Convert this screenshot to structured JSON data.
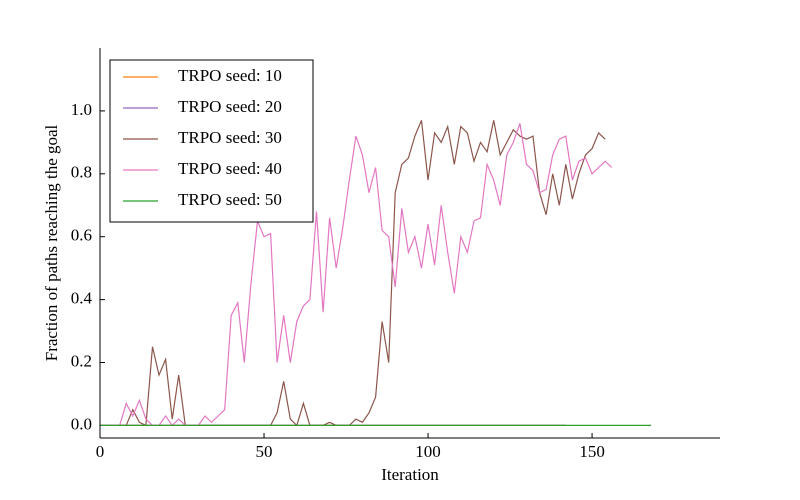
{
  "chart_data": {
    "type": "line",
    "x_label": "Iteration",
    "y_label": "Fraction of paths reaching the goal",
    "x": [
      0,
      2,
      4,
      6,
      8,
      10,
      12,
      14,
      16,
      18,
      20,
      22,
      24,
      26,
      28,
      30,
      32,
      34,
      36,
      38,
      40,
      42,
      44,
      46,
      48,
      50,
      52,
      54,
      56,
      58,
      60,
      62,
      64,
      66,
      68,
      70,
      72,
      74,
      76,
      78,
      80,
      82,
      84,
      86,
      88,
      90,
      92,
      94,
      96,
      98,
      100,
      102,
      104,
      106,
      108,
      110,
      112,
      114,
      116,
      118,
      120,
      122,
      124,
      126,
      128,
      130,
      132,
      134,
      136,
      138,
      140,
      142,
      144,
      146,
      148,
      150,
      152,
      154,
      156,
      158,
      160,
      162,
      164,
      166,
      168
    ],
    "series": [
      {
        "name": "TRPO seed: 10",
        "color": "#ff7f0e",
        "values": [
          0,
          0,
          0,
          0,
          0,
          0,
          0,
          0,
          0,
          0,
          0,
          0,
          0,
          0,
          0,
          0,
          0,
          0,
          0,
          0,
          0,
          0,
          0,
          0,
          0,
          0,
          0,
          0,
          0,
          0,
          0,
          0,
          0,
          0,
          0,
          0,
          0,
          0,
          0,
          0,
          0,
          0,
          0,
          0,
          0,
          0,
          0,
          0,
          0,
          0,
          0,
          0,
          0,
          0,
          0,
          0,
          0,
          0,
          0,
          0,
          0,
          0,
          0,
          0,
          0,
          0,
          0,
          0,
          0,
          0,
          0,
          0,
          null,
          null,
          null,
          null,
          null,
          null,
          null,
          null,
          null,
          null,
          null,
          null,
          null
        ]
      },
      {
        "name": "TRPO seed: 20",
        "color": "#9467bd",
        "values": [
          0,
          0,
          0,
          0,
          0,
          0,
          0,
          0,
          0,
          0,
          0,
          0,
          0,
          0,
          0,
          0,
          0,
          0,
          0,
          0,
          0,
          0,
          0,
          0,
          0,
          0,
          0,
          0,
          0,
          0,
          0,
          0,
          0,
          0,
          0,
          0,
          0,
          0,
          0,
          0,
          0,
          0,
          0,
          0,
          0,
          0,
          0,
          0,
          0,
          0,
          0,
          0,
          0,
          0,
          0,
          0,
          0,
          0,
          0,
          0,
          0,
          0,
          0,
          0,
          0,
          0,
          0,
          0,
          0,
          0,
          0,
          0,
          null,
          null,
          null,
          null,
          null,
          null,
          null,
          null,
          null,
          null,
          null,
          null,
          null
        ]
      },
      {
        "name": "TRPO seed: 30",
        "color": "#8c564b",
        "values": [
          0,
          0,
          0,
          0,
          0,
          0.05,
          0.01,
          0,
          0.25,
          0.16,
          0.21,
          0.02,
          0.16,
          0,
          0,
          0,
          0,
          0,
          0,
          0,
          0,
          0,
          0,
          0,
          0,
          0,
          0,
          0.04,
          0.14,
          0.02,
          0,
          0.07,
          0,
          0,
          0,
          0.01,
          0,
          0,
          0,
          0.02,
          0.01,
          0.04,
          0.09,
          0.33,
          0.2,
          0.74,
          0.83,
          0.85,
          0.92,
          0.97,
          0.78,
          0.93,
          0.9,
          0.95,
          0.83,
          0.95,
          0.93,
          0.84,
          0.9,
          0.87,
          0.97,
          0.86,
          0.9,
          0.94,
          0.92,
          0.91,
          0.92,
          0.74,
          0.67,
          0.8,
          0.7,
          0.83,
          0.72,
          0.8,
          0.86,
          0.88,
          0.93,
          0.91,
          null,
          null,
          null,
          null,
          null,
          null,
          null
        ]
      },
      {
        "name": "TRPO seed: 40",
        "color": "#e377c2",
        "values": [
          0,
          0,
          0,
          0,
          0.07,
          0.03,
          0.08,
          0.02,
          0,
          0,
          0.03,
          0,
          0.02,
          0,
          0,
          0,
          0.03,
          0.01,
          0.03,
          0.05,
          0.35,
          0.39,
          0.2,
          0.45,
          0.65,
          0.6,
          0.61,
          0.2,
          0.35,
          0.2,
          0.33,
          0.38,
          0.4,
          0.68,
          0.36,
          0.66,
          0.5,
          0.63,
          0.78,
          0.92,
          0.86,
          0.74,
          0.82,
          0.62,
          0.6,
          0.44,
          0.69,
          0.55,
          0.6,
          0.5,
          0.64,
          0.51,
          0.7,
          0.55,
          0.42,
          0.6,
          0.55,
          0.65,
          0.66,
          0.83,
          0.78,
          0.7,
          0.86,
          0.9,
          0.96,
          0.83,
          0.81,
          0.74,
          0.75,
          0.86,
          0.91,
          0.92,
          0.78,
          0.84,
          0.85,
          0.8,
          0.82,
          0.84,
          0.82,
          null,
          null,
          null,
          null,
          null,
          null
        ]
      },
      {
        "name": "TRPO seed: 50",
        "color": "#2ca02c",
        "values": [
          0,
          0,
          0,
          0,
          0,
          0,
          0,
          0,
          0,
          0,
          0,
          0,
          0,
          0,
          0,
          0,
          0,
          0,
          0,
          0,
          0,
          0,
          0,
          0,
          0,
          0,
          0,
          0,
          0,
          0,
          0,
          0,
          0,
          0,
          0,
          0,
          0,
          0,
          0,
          0,
          0,
          0,
          0,
          0,
          0,
          0,
          0,
          0,
          0,
          0,
          0,
          0,
          0,
          0,
          0,
          0,
          0,
          0,
          0,
          0,
          0,
          0,
          0,
          0,
          0,
          0,
          0,
          0,
          0,
          0,
          0,
          0,
          0,
          0,
          0,
          0,
          0,
          0,
          0,
          0,
          0,
          0,
          0,
          0,
          0
        ]
      }
    ],
    "xlim": [
      0,
      189
    ],
    "xticks": [
      0,
      50,
      100,
      150
    ],
    "ylim": [
      -0.04,
      1.2
    ],
    "yticks": [
      {
        "value": 0,
        "label": "0.0"
      },
      {
        "value": 0.2,
        "label": "0.2"
      },
      {
        "value": 0.4,
        "label": "0.4"
      },
      {
        "value": 0.6,
        "label": "0.6"
      },
      {
        "value": 0.8,
        "label": "0.8"
      },
      {
        "value": 1,
        "label": "1.0"
      }
    ],
    "legend": "upper left"
  }
}
